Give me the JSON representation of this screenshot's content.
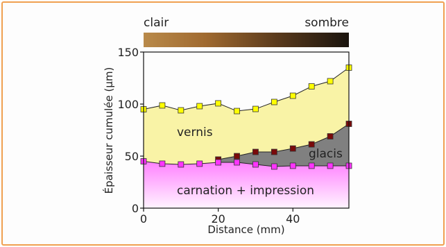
{
  "chart_data": {
    "type": "line",
    "colorbar": {
      "left_label": "clair",
      "right_label": "sombre"
    },
    "x": [
      0,
      5,
      10,
      15,
      20,
      25,
      30,
      35,
      40,
      45,
      50,
      55
    ],
    "series": [
      {
        "name": "vernis",
        "color": "#ffff00",
        "fill": "#f9f3a6",
        "values": [
          95,
          98.7,
          94,
          98,
          100.7,
          93.3,
          95.3,
          102,
          108,
          117,
          122,
          135
        ]
      },
      {
        "name": "glacis",
        "color": "#7a0a0a",
        "fill": "#808080",
        "values": [
          null,
          null,
          null,
          null,
          46.7,
          50,
          54,
          54,
          57.3,
          61.3,
          69,
          81
        ]
      },
      {
        "name": "carnation + impression",
        "color": "#ff33ff",
        "fill": "#ff80ff",
        "values": [
          45,
          42.7,
          42,
          42.7,
          44,
          44,
          42,
          40,
          40.7,
          40.7,
          40.7,
          40.7
        ]
      }
    ],
    "xlabel": "Distance (mm)",
    "ylabel": "Épaisseur cumulée (µm)",
    "xlim": [
      0,
      55
    ],
    "ylim": [
      0,
      150
    ],
    "xticks": [
      0,
      20,
      40
    ],
    "yticks": [
      0,
      50,
      100,
      150
    ]
  }
}
